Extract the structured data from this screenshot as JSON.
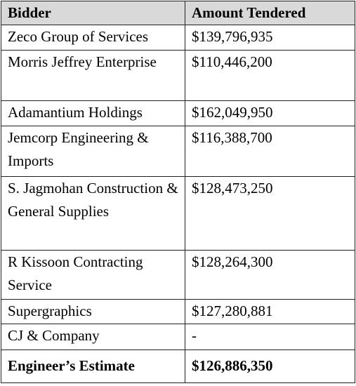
{
  "table": {
    "header": [
      "Bidder",
      "Amount Tendered"
    ],
    "rows": [
      [
        "Zeco Group of Services",
        "$139,796,935"
      ],
      [
        "Morris Jeffrey Enterprise",
        "$110,446,200"
      ],
      [
        "Adamantium Holdings",
        "$162,049,950"
      ],
      [
        "Jemcorp Engineering & Imports",
        "$116,388,700"
      ],
      [
        "S. Jagmohan Construction & General Supplies",
        "$128,473,250"
      ],
      [
        "R Kissoon Contracting Service",
        "$128,264,300"
      ],
      [
        "Supergraphics",
        "$127,280,881"
      ],
      [
        "CJ & Company",
        "-"
      ],
      [
        "Engineer’s Estimate",
        "$126,886,350"
      ]
    ]
  }
}
